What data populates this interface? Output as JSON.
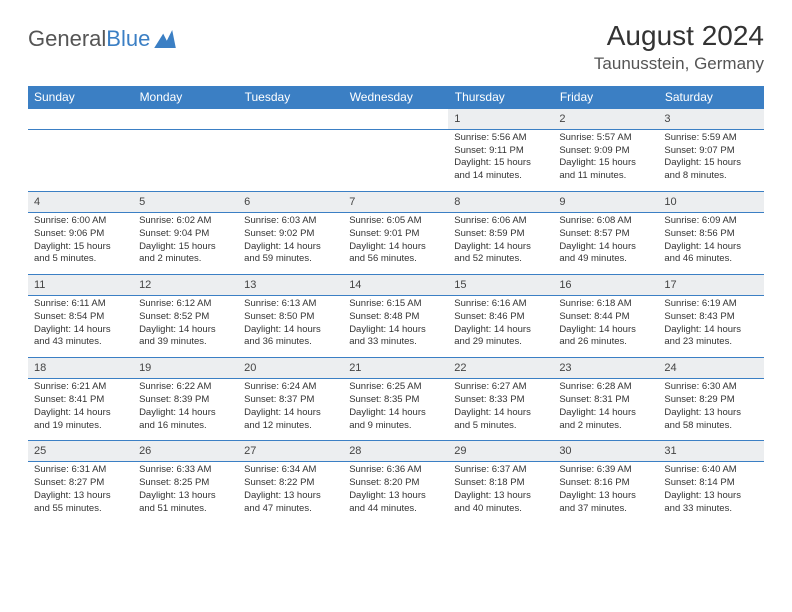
{
  "logo": {
    "part1": "General",
    "part2": "Blue"
  },
  "header": {
    "title": "August 2024",
    "location": "Taunusstein, Germany"
  },
  "weekdays": [
    "Sunday",
    "Monday",
    "Tuesday",
    "Wednesday",
    "Thursday",
    "Friday",
    "Saturday"
  ],
  "style": {
    "header_bg": "#3b7fc4",
    "header_fg": "#ffffff",
    "daynum_bg": "#eceef0",
    "cell_border": "#3b7fc4",
    "text_color": "#333333",
    "daynum_fontsize": 11,
    "detail_fontsize": 9.5,
    "title_fontsize": 28,
    "location_fontsize": 17
  },
  "first_weekday_index": 4,
  "days": [
    {
      "n": 1,
      "sunrise": "5:56 AM",
      "sunset": "9:11 PM",
      "daylight": "15 hours and 14 minutes."
    },
    {
      "n": 2,
      "sunrise": "5:57 AM",
      "sunset": "9:09 PM",
      "daylight": "15 hours and 11 minutes."
    },
    {
      "n": 3,
      "sunrise": "5:59 AM",
      "sunset": "9:07 PM",
      "daylight": "15 hours and 8 minutes."
    },
    {
      "n": 4,
      "sunrise": "6:00 AM",
      "sunset": "9:06 PM",
      "daylight": "15 hours and 5 minutes."
    },
    {
      "n": 5,
      "sunrise": "6:02 AM",
      "sunset": "9:04 PM",
      "daylight": "15 hours and 2 minutes."
    },
    {
      "n": 6,
      "sunrise": "6:03 AM",
      "sunset": "9:02 PM",
      "daylight": "14 hours and 59 minutes."
    },
    {
      "n": 7,
      "sunrise": "6:05 AM",
      "sunset": "9:01 PM",
      "daylight": "14 hours and 56 minutes."
    },
    {
      "n": 8,
      "sunrise": "6:06 AM",
      "sunset": "8:59 PM",
      "daylight": "14 hours and 52 minutes."
    },
    {
      "n": 9,
      "sunrise": "6:08 AM",
      "sunset": "8:57 PM",
      "daylight": "14 hours and 49 minutes."
    },
    {
      "n": 10,
      "sunrise": "6:09 AM",
      "sunset": "8:56 PM",
      "daylight": "14 hours and 46 minutes."
    },
    {
      "n": 11,
      "sunrise": "6:11 AM",
      "sunset": "8:54 PM",
      "daylight": "14 hours and 43 minutes."
    },
    {
      "n": 12,
      "sunrise": "6:12 AM",
      "sunset": "8:52 PM",
      "daylight": "14 hours and 39 minutes."
    },
    {
      "n": 13,
      "sunrise": "6:13 AM",
      "sunset": "8:50 PM",
      "daylight": "14 hours and 36 minutes."
    },
    {
      "n": 14,
      "sunrise": "6:15 AM",
      "sunset": "8:48 PM",
      "daylight": "14 hours and 33 minutes."
    },
    {
      "n": 15,
      "sunrise": "6:16 AM",
      "sunset": "8:46 PM",
      "daylight": "14 hours and 29 minutes."
    },
    {
      "n": 16,
      "sunrise": "6:18 AM",
      "sunset": "8:44 PM",
      "daylight": "14 hours and 26 minutes."
    },
    {
      "n": 17,
      "sunrise": "6:19 AM",
      "sunset": "8:43 PM",
      "daylight": "14 hours and 23 minutes."
    },
    {
      "n": 18,
      "sunrise": "6:21 AM",
      "sunset": "8:41 PM",
      "daylight": "14 hours and 19 minutes."
    },
    {
      "n": 19,
      "sunrise": "6:22 AM",
      "sunset": "8:39 PM",
      "daylight": "14 hours and 16 minutes."
    },
    {
      "n": 20,
      "sunrise": "6:24 AM",
      "sunset": "8:37 PM",
      "daylight": "14 hours and 12 minutes."
    },
    {
      "n": 21,
      "sunrise": "6:25 AM",
      "sunset": "8:35 PM",
      "daylight": "14 hours and 9 minutes."
    },
    {
      "n": 22,
      "sunrise": "6:27 AM",
      "sunset": "8:33 PM",
      "daylight": "14 hours and 5 minutes."
    },
    {
      "n": 23,
      "sunrise": "6:28 AM",
      "sunset": "8:31 PM",
      "daylight": "14 hours and 2 minutes."
    },
    {
      "n": 24,
      "sunrise": "6:30 AM",
      "sunset": "8:29 PM",
      "daylight": "13 hours and 58 minutes."
    },
    {
      "n": 25,
      "sunrise": "6:31 AM",
      "sunset": "8:27 PM",
      "daylight": "13 hours and 55 minutes."
    },
    {
      "n": 26,
      "sunrise": "6:33 AM",
      "sunset": "8:25 PM",
      "daylight": "13 hours and 51 minutes."
    },
    {
      "n": 27,
      "sunrise": "6:34 AM",
      "sunset": "8:22 PM",
      "daylight": "13 hours and 47 minutes."
    },
    {
      "n": 28,
      "sunrise": "6:36 AM",
      "sunset": "8:20 PM",
      "daylight": "13 hours and 44 minutes."
    },
    {
      "n": 29,
      "sunrise": "6:37 AM",
      "sunset": "8:18 PM",
      "daylight": "13 hours and 40 minutes."
    },
    {
      "n": 30,
      "sunrise": "6:39 AM",
      "sunset": "8:16 PM",
      "daylight": "13 hours and 37 minutes."
    },
    {
      "n": 31,
      "sunrise": "6:40 AM",
      "sunset": "8:14 PM",
      "daylight": "13 hours and 33 minutes."
    }
  ]
}
